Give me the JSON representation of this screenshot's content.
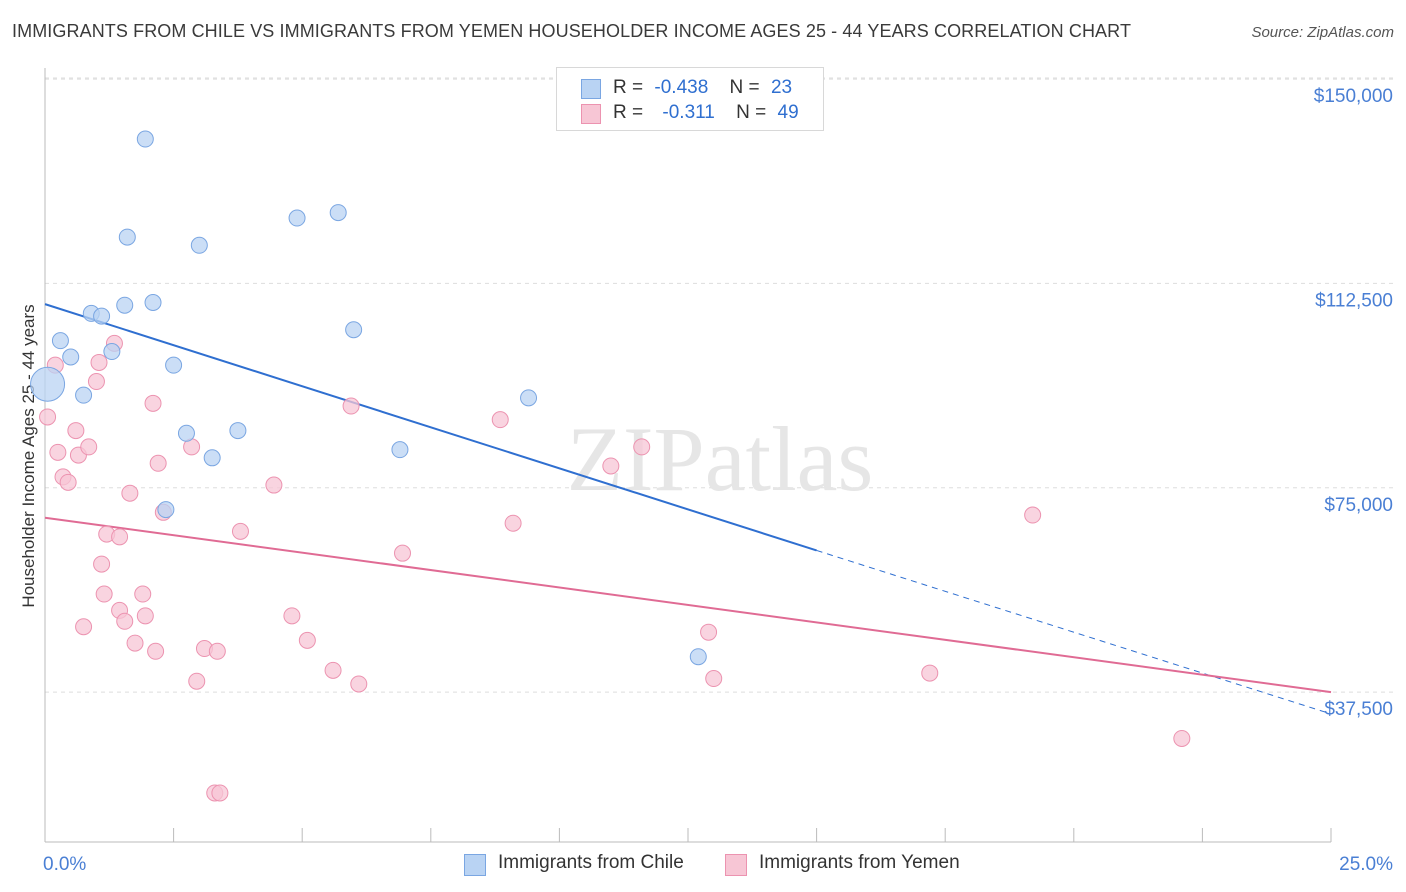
{
  "title": "IMMIGRANTS FROM CHILE VS IMMIGRANTS FROM YEMEN HOUSEHOLDER INCOME AGES 25 - 44 YEARS CORRELATION CHART",
  "source": "Source: ZipAtlas.com",
  "watermark": "ZIPatlas",
  "legend": {
    "rows": [
      {
        "r_label": "R =",
        "r_value": "-0.438",
        "n_label": "N =",
        "n_value": "23"
      },
      {
        "r_label": "R =",
        "r_value": "-0.311",
        "n_label": "N =",
        "n_value": "49"
      }
    ]
  },
  "bottom_legend": [
    {
      "label": "Immigrants from Chile"
    },
    {
      "label": "Immigrants from Yemen"
    }
  ],
  "colors": {
    "chile_fill": "#b9d3f3",
    "chile_stroke": "#7aa6e2",
    "chile_line": "#2f6fd0",
    "yemen_fill": "#f7c6d5",
    "yemen_stroke": "#ec93b0",
    "yemen_line": "#e06b94",
    "tick_text": "#4a7fd4",
    "grid": "#dddddd"
  },
  "chart_data": {
    "type": "scatter",
    "title": "IMMIGRANTS FROM CHILE VS IMMIGRANTS FROM YEMEN HOUSEHOLDER INCOME AGES 25 - 44 YEARS CORRELATION CHART",
    "xlabel": "",
    "ylabel": "Householder Income Ages 25 - 44 years",
    "xlim": [
      0,
      25
    ],
    "ylim": [
      10000,
      153500
    ],
    "x_tick_labels": [
      "0.0%",
      "25.0%"
    ],
    "y_ticks": [
      37500,
      75000,
      112500,
      150000
    ],
    "y_tick_labels": [
      "$37,500",
      "$75,000",
      "$112,500",
      "$150,000"
    ],
    "grid": true,
    "legend_placement": "top-center",
    "series": [
      {
        "name": "Immigrants from Chile",
        "points": [
          [
            0.05,
            94000
          ],
          [
            0.3,
            102000
          ],
          [
            0.5,
            99000
          ],
          [
            0.75,
            92000
          ],
          [
            0.9,
            107000
          ],
          [
            1.1,
            106500
          ],
          [
            1.3,
            100000
          ],
          [
            1.55,
            108500
          ],
          [
            1.95,
            139000
          ],
          [
            1.6,
            121000
          ],
          [
            2.1,
            109000
          ],
          [
            2.5,
            97500
          ],
          [
            2.75,
            85000
          ],
          [
            3.0,
            119500
          ],
          [
            3.25,
            80500
          ],
          [
            3.75,
            85500
          ],
          [
            4.9,
            124500
          ],
          [
            5.7,
            125500
          ],
          [
            6.0,
            104000
          ],
          [
            6.9,
            82000
          ],
          [
            9.4,
            91500
          ],
          [
            12.7,
            44000
          ],
          [
            2.35,
            71000
          ]
        ],
        "trend": {
          "x": [
            0,
            15.0
          ],
          "y": [
            108700,
            63500
          ]
        },
        "trend_dashed_extension": {
          "x": [
            15.0,
            25.0
          ],
          "y": [
            63500,
            33500
          ]
        }
      },
      {
        "name": "Immigrants from Yemen",
        "points": [
          [
            0.05,
            88000
          ],
          [
            0.2,
            97500
          ],
          [
            0.25,
            81500
          ],
          [
            0.35,
            77000
          ],
          [
            0.45,
            76000
          ],
          [
            0.6,
            85500
          ],
          [
            0.65,
            81000
          ],
          [
            0.75,
            49500
          ],
          [
            0.85,
            82500
          ],
          [
            1.0,
            94500
          ],
          [
            1.05,
            98000
          ],
          [
            1.1,
            61000
          ],
          [
            1.15,
            55500
          ],
          [
            1.2,
            66500
          ],
          [
            1.35,
            101500
          ],
          [
            1.45,
            52500
          ],
          [
            1.45,
            66000
          ],
          [
            1.55,
            50500
          ],
          [
            1.65,
            74000
          ],
          [
            1.75,
            46500
          ],
          [
            1.9,
            55500
          ],
          [
            1.95,
            51500
          ],
          [
            2.1,
            90500
          ],
          [
            2.15,
            45000
          ],
          [
            2.2,
            79500
          ],
          [
            2.3,
            70500
          ],
          [
            2.85,
            82500
          ],
          [
            2.95,
            39500
          ],
          [
            3.1,
            45500
          ],
          [
            3.3,
            19000
          ],
          [
            3.35,
            45000
          ],
          [
            3.4,
            19000
          ],
          [
            3.8,
            67000
          ],
          [
            4.45,
            75500
          ],
          [
            4.8,
            51500
          ],
          [
            5.1,
            47000
          ],
          [
            5.6,
            41500
          ],
          [
            5.95,
            90000
          ],
          [
            6.1,
            39000
          ],
          [
            6.95,
            63000
          ],
          [
            8.85,
            87500
          ],
          [
            9.1,
            68500
          ],
          [
            11.0,
            79000
          ],
          [
            11.6,
            82500
          ],
          [
            12.9,
            48500
          ],
          [
            13.0,
            40000
          ],
          [
            17.2,
            41000
          ],
          [
            19.2,
            70000
          ],
          [
            22.1,
            29000
          ]
        ],
        "trend": {
          "x": [
            0,
            25.0
          ],
          "y": [
            69500,
            37500
          ]
        }
      }
    ]
  }
}
